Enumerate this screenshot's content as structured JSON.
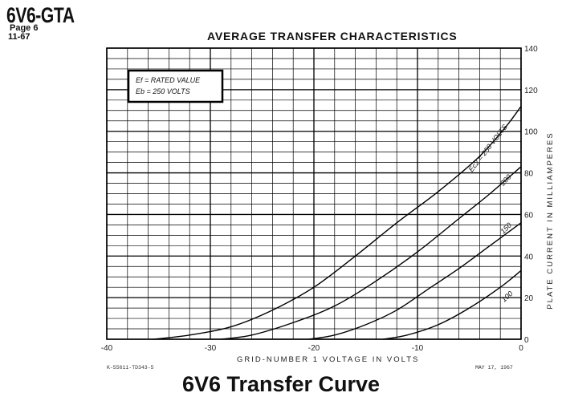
{
  "header": {
    "tube": "6V6-GTA",
    "page": "Page  6",
    "date_code": "11-67"
  },
  "caption": "6V6 Transfer Curve",
  "footer": {
    "left": "K-55611-TD343-5",
    "right": "MAY 17, 1967"
  },
  "legend": {
    "line1": "Ef = RATED VALUE",
    "line2": "Eb = 250 VOLTS"
  },
  "chart_data": {
    "type": "line",
    "title": "AVERAGE TRANSFER CHARACTERISTICS",
    "xlabel": "GRID-NUMBER 1 VOLTAGE IN VOLTS",
    "ylabel": "PLATE CURRENT IN MILLIAMPERES",
    "xlim": [
      -40,
      0
    ],
    "ylim": [
      0,
      140
    ],
    "x_ticks": [
      {
        "value": -40,
        "label": "-40"
      },
      {
        "value": -30,
        "label": "-30"
      },
      {
        "value": -20,
        "label": "-20"
      },
      {
        "value": -10,
        "label": "-10"
      },
      {
        "value": 0,
        "label": "0"
      }
    ],
    "y_ticks": [
      {
        "value": 0,
        "label": "0"
      },
      {
        "value": 20,
        "label": "20"
      },
      {
        "value": 40,
        "label": "40"
      },
      {
        "value": 60,
        "label": "60"
      },
      {
        "value": 80,
        "label": "80"
      },
      {
        "value": 100,
        "label": "100"
      },
      {
        "value": 120,
        "label": "120"
      },
      {
        "value": 140,
        "label": "140"
      }
    ],
    "grid": true,
    "series": [
      {
        "name": "Ec2 = 250 VOLTS",
        "label": "Ec2 = 250 VOLTS",
        "x": [
          -35.5,
          -32,
          -28,
          -24,
          -20,
          -16,
          -12,
          -8,
          -4,
          -1.5,
          0
        ],
        "y": [
          0,
          2,
          6,
          14,
          25,
          40,
          56,
          71,
          88,
          102,
          112
        ]
      },
      {
        "name": "200",
        "label": "200",
        "x": [
          -29,
          -26,
          -22,
          -18,
          -14,
          -10,
          -6,
          -3,
          0
        ],
        "y": [
          0,
          2,
          8,
          16,
          28,
          42,
          58,
          70,
          83
        ]
      },
      {
        "name": "150",
        "label": "150",
        "x": [
          -20.5,
          -18,
          -15,
          -12,
          -9,
          -6,
          -3,
          0
        ],
        "y": [
          0,
          2,
          7,
          14,
          24,
          34,
          45,
          56
        ]
      },
      {
        "name": "100",
        "label": "100",
        "x": [
          -13.3,
          -11,
          -8,
          -5,
          -2,
          0
        ],
        "y": [
          0,
          2,
          7,
          15,
          25,
          33
        ]
      }
    ]
  }
}
